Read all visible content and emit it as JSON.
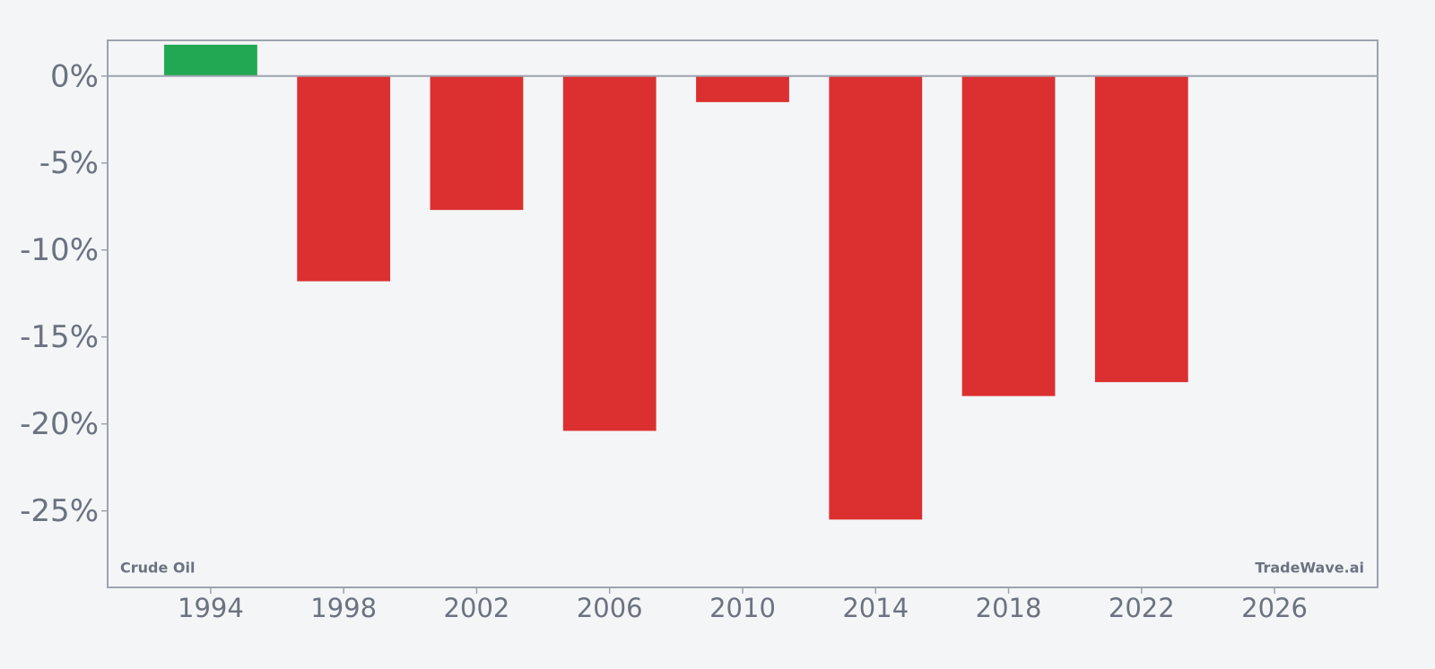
{
  "chart_data": {
    "type": "bar",
    "x": [
      1994,
      1998,
      2002,
      2006,
      2010,
      2014,
      2018,
      2022
    ],
    "values": [
      1.8,
      -11.8,
      -7.7,
      -20.4,
      -1.5,
      -25.5,
      -18.4,
      -17.6
    ],
    "bar_width": 2.8,
    "positive_color": "#22a853",
    "negative_color": "#dc3030",
    "xlim": [
      1990.9,
      2029.1
    ],
    "xticks": [
      1994,
      1998,
      2002,
      2006,
      2010,
      2014,
      2018,
      2022,
      2026
    ],
    "ylim": [
      -29.4,
      2.05
    ],
    "yticks": [
      {
        "value": 0,
        "label": "0%"
      },
      {
        "value": -5,
        "label": "-5%"
      },
      {
        "value": -10,
        "label": "-10%"
      },
      {
        "value": -15,
        "label": "-15%"
      },
      {
        "value": -20,
        "label": "-20%"
      },
      {
        "value": -25,
        "label": "-25%"
      }
    ],
    "annotations": [
      "Crude Oil",
      "TradeWave.ai"
    ]
  }
}
